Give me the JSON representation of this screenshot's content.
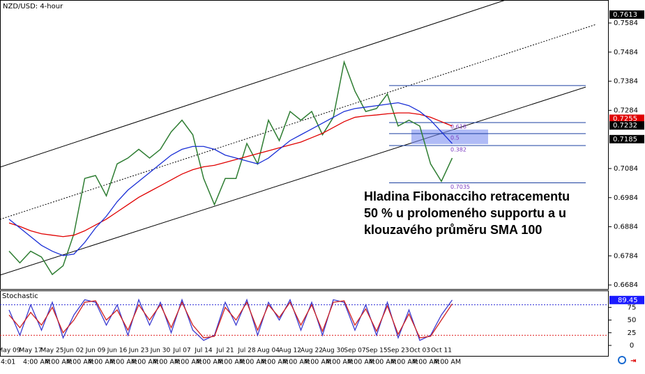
{
  "chart_data": [
    {
      "type": "line",
      "title": "NZD/USD: 4-hour",
      "categories": [
        "May 09",
        null,
        "May 17",
        null,
        "May 25",
        null,
        "Jun 02",
        null,
        "Jun 09",
        null,
        "Jun 16",
        null,
        "Jun 23",
        null,
        "Jun 30",
        null,
        "Jul 07",
        null,
        "Jul 14",
        null,
        "Jul 21",
        null,
        "Jul 28",
        null,
        "Aug 04",
        null,
        "Aug 12",
        null,
        "Aug 22",
        null,
        "Aug 30",
        null,
        "Sep 07",
        null,
        "Sep 15",
        null,
        "Sep 23",
        null,
        "Oct 03",
        null,
        "Oct 11",
        null
      ],
      "series": [
        {
          "color": "#2e7d32",
          "values": [
            0.68,
            0.676,
            0.68,
            0.678,
            0.672,
            0.675,
            0.686,
            0.705,
            0.706,
            0.699,
            0.71,
            0.712,
            0.715,
            0.712,
            0.715,
            0.721,
            0.725,
            0.72,
            0.705,
            0.696,
            0.705,
            0.705,
            0.717,
            0.71,
            0.725,
            0.718,
            0.728,
            0.725,
            0.728,
            0.72,
            0.726,
            0.745,
            0.735,
            0.728,
            0.729,
            0.734,
            0.723,
            0.725,
            0.723,
            0.71,
            0.704,
            0.712
          ]
        },
        {
          "color": "#e00000",
          "values": [
            0.6897,
            0.6885,
            0.687,
            0.686,
            0.6855,
            0.685,
            0.6855,
            0.687,
            0.689,
            0.691,
            0.6935,
            0.696,
            0.6985,
            0.7005,
            0.7025,
            0.7045,
            0.7065,
            0.708,
            0.709,
            0.7095,
            0.7105,
            0.7115,
            0.7125,
            0.7135,
            0.7145,
            0.7155,
            0.7165,
            0.7175,
            0.719,
            0.7205,
            0.7225,
            0.7245,
            0.726,
            0.7265,
            0.7268,
            0.7272,
            0.7275,
            0.7275,
            0.727,
            0.726,
            0.7245,
            0.723
          ]
        },
        {
          "color": "#1a2fd6",
          "values": [
            0.691,
            0.688,
            0.685,
            0.682,
            0.68,
            0.6785,
            0.679,
            0.683,
            0.688,
            0.692,
            0.697,
            0.701,
            0.704,
            0.707,
            0.71,
            0.713,
            0.715,
            0.716,
            0.716,
            0.715,
            0.713,
            0.712,
            0.711,
            0.71,
            0.712,
            0.715,
            0.718,
            0.72,
            0.722,
            0.724,
            0.726,
            0.728,
            0.729,
            0.7295,
            0.73,
            0.7305,
            0.731,
            0.73,
            0.728,
            0.725,
            0.721,
            0.717
          ]
        }
      ],
      "ylim": [
        0.667,
        0.7663
      ],
      "yticks": [
        0.7584,
        0.7484,
        0.7384,
        0.7284,
        0.7084,
        0.6984,
        0.6884,
        0.6784,
        0.6684
      ],
      "price_markers": [
        {
          "value": 0.7613,
          "color": "#000000"
        },
        {
          "value": 0.7255,
          "color": "#e00000"
        },
        {
          "value": 0.7232,
          "color": "#000000"
        },
        {
          "value": 0.7185,
          "color": "#000000"
        }
      ],
      "fib_levels": [
        {
          "value": 0.7369
        },
        {
          "value": 0.7242,
          "label": "0.618"
        },
        {
          "value": 0.7204,
          "label": "0.5"
        },
        {
          "value": 0.7163,
          "label": "0.382"
        },
        {
          "value": 0.7035,
          "label": "0.7035"
        }
      ],
      "zone": [
        0.7168,
        0.7218
      ],
      "annotation": [
        "Hladina Fibonacciho retracementu",
        "50 % u prolomeného supportu a u",
        "klouzavého průměru SMA 100"
      ],
      "time_labels": [
        "4:01",
        "4:00 AM",
        "4:00 AM",
        "4:00 AM",
        "4:00 AM",
        "4:00 AM",
        "4:00 AM",
        "4:00 AM",
        "4:00 AM",
        "4:00 AM",
        "4:00 AM",
        "4:00 AM",
        "4:00 AM",
        "4:00 AM",
        "4:00 AM",
        "4:00 AM",
        "4:00 AM",
        "4:00 AM",
        "4:00 AM",
        "4:00 AM",
        "4:00 AM"
      ]
    },
    {
      "type": "line",
      "title": "Stochastic",
      "series": [
        {
          "color": "#3a3ad0",
          "values": [
            70,
            20,
            80,
            30,
            85,
            15,
            60,
            90,
            85,
            40,
            80,
            20,
            90,
            40,
            85,
            25,
            90,
            30,
            10,
            20,
            85,
            40,
            90,
            20,
            85,
            50,
            90,
            30,
            85,
            20,
            90,
            85,
            30,
            80,
            20,
            85,
            15,
            70,
            10,
            20,
            60,
            89.45
          ]
        },
        {
          "color": "#d02020",
          "values": [
            60,
            35,
            65,
            40,
            75,
            25,
            50,
            85,
            88,
            50,
            70,
            30,
            80,
            50,
            80,
            35,
            85,
            40,
            15,
            18,
            75,
            50,
            85,
            30,
            80,
            55,
            85,
            40,
            80,
            28,
            85,
            88,
            40,
            72,
            28,
            78,
            22,
            62,
            15,
            18,
            50,
            82
          ]
        }
      ],
      "ylim": [
        -22,
        107
      ],
      "yticks": [
        0,
        25,
        50,
        75
      ],
      "levels": [
        {
          "value": 80,
          "color": "#2a2ad8"
        },
        {
          "value": 20,
          "color": "#e02020"
        }
      ],
      "marker": {
        "value": 89.45,
        "color": "#1a1aff"
      }
    }
  ]
}
